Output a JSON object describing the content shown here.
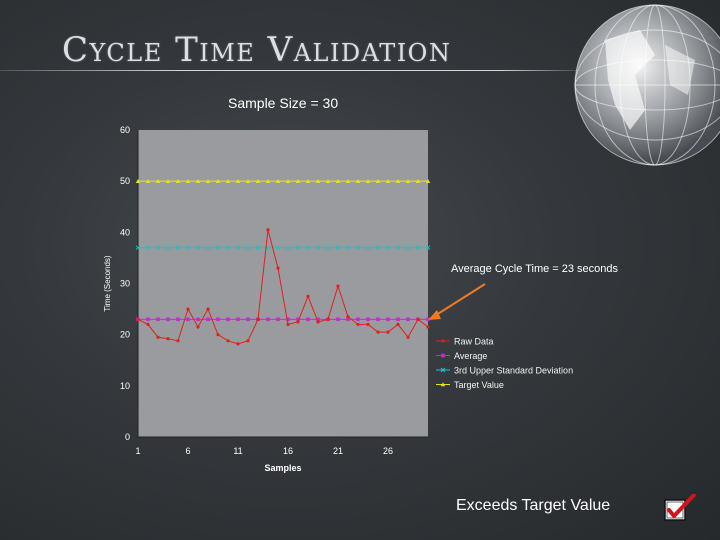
{
  "slide": {
    "title": "Cycle Time Validation",
    "subtitle": "Sample Size = 30",
    "annotation": "Average Cycle Time = 23 seconds",
    "footer_note": "Exceeds Target Value"
  },
  "colors": {
    "raw": "#e0201c",
    "average": "#c42bd6",
    "ucl": "#1fc2c8",
    "target": "#e8e21e",
    "arrow": "#f07a22",
    "plot_bg": "#999b9e"
  },
  "icons": [
    "globe-icon",
    "checkbox-checked-icon",
    "arrow-icon"
  ],
  "chart_data": {
    "type": "line",
    "ylabel": "Time (Seconds)",
    "xlabel": "Samples",
    "ylim": [
      0,
      60
    ],
    "xlim": [
      1,
      30
    ],
    "yticks": [
      0,
      10,
      20,
      30,
      40,
      50,
      60
    ],
    "xticks": [
      1,
      6,
      11,
      16,
      21,
      26
    ],
    "grid": false,
    "legend_position": "right",
    "x": [
      1,
      2,
      3,
      4,
      5,
      6,
      7,
      8,
      9,
      10,
      11,
      12,
      13,
      14,
      15,
      16,
      17,
      18,
      19,
      20,
      21,
      22,
      23,
      24,
      25,
      26,
      27,
      28,
      29,
      30
    ],
    "series": [
      {
        "name": "Raw Data",
        "color_key": "raw",
        "marker": "dot",
        "values": [
          23,
          22,
          19.5,
          19.2,
          18.8,
          25,
          21.5,
          25,
          20,
          18.8,
          18.2,
          18.8,
          23,
          40.5,
          33,
          22,
          22.5,
          27.5,
          22.5,
          23,
          29.5,
          23.5,
          22,
          22,
          20.5,
          20.5,
          22,
          19.5,
          23,
          21.5
        ]
      },
      {
        "name": "Average",
        "color_key": "average",
        "marker": "square",
        "values": [
          23,
          23,
          23,
          23,
          23,
          23,
          23,
          23,
          23,
          23,
          23,
          23,
          23,
          23,
          23,
          23,
          23,
          23,
          23,
          23,
          23,
          23,
          23,
          23,
          23,
          23,
          23,
          23,
          23,
          23
        ]
      },
      {
        "name": "3rd Upper Standard Deviation",
        "color_key": "ucl",
        "marker": "cross",
        "values": [
          37,
          37,
          37,
          37,
          37,
          37,
          37,
          37,
          37,
          37,
          37,
          37,
          37,
          37,
          37,
          37,
          37,
          37,
          37,
          37,
          37,
          37,
          37,
          37,
          37,
          37,
          37,
          37,
          37,
          37
        ]
      },
      {
        "name": "Target Value",
        "color_key": "target",
        "marker": "triangle",
        "values": [
          50,
          50,
          50,
          50,
          50,
          50,
          50,
          50,
          50,
          50,
          50,
          50,
          50,
          50,
          50,
          50,
          50,
          50,
          50,
          50,
          50,
          50,
          50,
          50,
          50,
          50,
          50,
          50,
          50,
          50
        ]
      }
    ]
  }
}
